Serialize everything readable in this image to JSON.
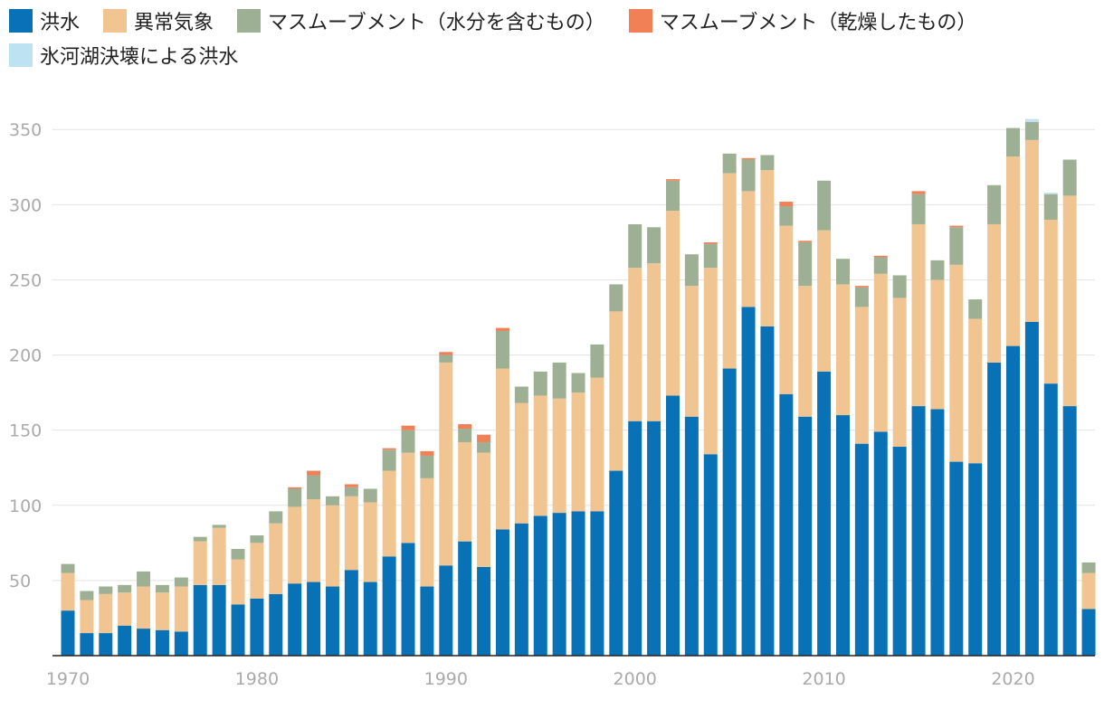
{
  "legend": [
    {
      "name": "洪水",
      "color": "#0972b6"
    },
    {
      "name": "異常気象",
      "color": "#f0c591"
    },
    {
      "name": "マスムーブメント（水分を含むもの）",
      "color": "#9eb093"
    },
    {
      "name": "マスムーブメント（乾燥したもの）",
      "color": "#f28057"
    },
    {
      "name": "氷河湖決壊による洪水",
      "color": "#bde3f3"
    }
  ],
  "chart_data": {
    "type": "bar",
    "stacked": true,
    "ylim": [
      0,
      350
    ],
    "yticks": [
      50,
      100,
      150,
      200,
      250,
      300,
      350
    ],
    "xtick_labels": [
      "1970",
      "1980",
      "1990",
      "2000",
      "2010",
      "2020"
    ],
    "categories": [
      1970,
      1971,
      1972,
      1973,
      1974,
      1975,
      1976,
      1977,
      1978,
      1979,
      1980,
      1981,
      1982,
      1983,
      1984,
      1985,
      1986,
      1987,
      1988,
      1989,
      1990,
      1991,
      1992,
      1993,
      1994,
      1995,
      1996,
      1997,
      1998,
      1999,
      2000,
      2001,
      2002,
      2003,
      2004,
      2005,
      2006,
      2007,
      2008,
      2009,
      2010,
      2011,
      2012,
      2013,
      2014,
      2015,
      2016,
      2017,
      2018,
      2019,
      2020,
      2021,
      2022,
      2023,
      2024
    ],
    "series": [
      {
        "name": "洪水",
        "color": "#0972b6",
        "values": [
          30,
          15,
          15,
          20,
          18,
          17,
          16,
          47,
          47,
          34,
          38,
          41,
          48,
          49,
          46,
          57,
          49,
          66,
          75,
          46,
          60,
          76,
          59,
          84,
          88,
          93,
          95,
          96,
          96,
          123,
          156,
          156,
          173,
          159,
          134,
          191,
          232,
          219,
          174,
          159,
          189,
          160,
          141,
          149,
          139,
          166,
          164,
          129,
          128,
          195,
          206,
          222,
          181,
          166,
          31
        ]
      },
      {
        "name": "異常気象",
        "color": "#f0c591",
        "values": [
          25,
          22,
          26,
          22,
          28,
          25,
          30,
          29,
          38,
          30,
          37,
          47,
          51,
          55,
          54,
          49,
          53,
          57,
          60,
          72,
          135,
          66,
          76,
          107,
          80,
          80,
          76,
          79,
          89,
          106,
          102,
          105,
          123,
          87,
          124,
          130,
          77,
          104,
          112,
          87,
          94,
          87,
          91,
          105,
          99,
          121,
          86,
          131,
          96,
          92,
          126,
          121,
          109,
          140,
          24
        ]
      },
      {
        "name": "マスムーブメント（水分を含むもの）",
        "color": "#9eb093",
        "values": [
          6,
          6,
          5,
          5,
          10,
          5,
          6,
          3,
          2,
          7,
          5,
          8,
          12,
          16,
          6,
          6,
          9,
          14,
          15,
          15,
          5,
          9,
          7,
          25,
          11,
          16,
          24,
          13,
          22,
          18,
          29,
          24,
          20,
          21,
          16,
          13,
          21,
          10,
          13,
          29,
          33,
          17,
          13,
          11,
          15,
          20,
          13,
          25,
          13,
          26,
          19,
          12,
          17,
          24,
          7
        ]
      },
      {
        "name": "マスムーブメント（乾燥したもの）",
        "color": "#f28057",
        "values": [
          0,
          0,
          0,
          0,
          0,
          0,
          0,
          0,
          0,
          0,
          0,
          0,
          1,
          3,
          0,
          2,
          0,
          1,
          3,
          3,
          2,
          3,
          5,
          2,
          0,
          0,
          0,
          0,
          0,
          0,
          0,
          0,
          1,
          0,
          1,
          0,
          1,
          0,
          3,
          1,
          0,
          0,
          1,
          1,
          0,
          2,
          0,
          1,
          0,
          0,
          0,
          0,
          0,
          0,
          0
        ]
      },
      {
        "name": "氷河湖決壊による洪水",
        "color": "#bde3f3",
        "values": [
          0,
          0,
          0,
          0,
          0,
          0,
          0,
          0,
          0,
          0,
          0,
          0,
          0,
          0,
          0,
          0,
          0,
          0,
          0,
          0,
          0,
          0,
          0,
          0,
          0,
          0,
          0,
          0,
          0,
          0,
          0,
          0,
          0,
          0,
          0,
          0,
          0,
          0,
          0,
          0,
          0,
          0,
          0,
          0,
          0,
          0,
          0,
          0,
          0,
          0,
          0,
          2,
          1,
          0,
          0
        ]
      }
    ]
  }
}
